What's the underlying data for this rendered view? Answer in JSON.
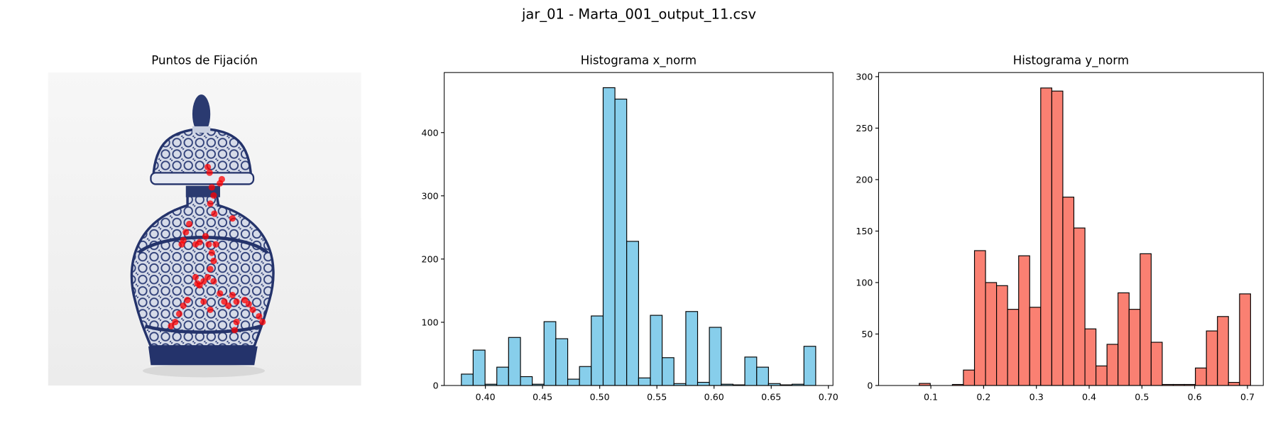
{
  "title": "jar_01 - Marta_001_output_11.csv",
  "chart_data": [
    {
      "type": "scatter",
      "title": "Puntos de Fijación",
      "color": "#ff0000",
      "x": [
        0.51,
        0.516,
        0.523,
        0.529,
        0.518,
        0.555,
        0.549,
        0.531,
        0.589,
        0.451,
        0.44,
        0.432,
        0.427,
        0.471,
        0.484,
        0.503,
        0.513,
        0.523,
        0.529,
        0.518,
        0.51,
        0.497,
        0.484,
        0.529,
        0.536,
        0.471,
        0.549,
        0.563,
        0.576,
        0.589,
        0.602,
        0.628,
        0.641,
        0.654,
        0.674,
        0.685,
        0.602,
        0.596,
        0.419,
        0.406,
        0.393,
        0.432,
        0.445,
        0.497,
        0.518,
        0.477
      ],
      "y": [
        0.302,
        0.32,
        0.367,
        0.393,
        0.419,
        0.341,
        0.354,
        0.451,
        0.466,
        0.484,
        0.51,
        0.536,
        0.549,
        0.549,
        0.542,
        0.523,
        0.549,
        0.576,
        0.602,
        0.628,
        0.654,
        0.667,
        0.68,
        0.667,
        0.549,
        0.654,
        0.706,
        0.732,
        0.745,
        0.711,
        0.732,
        0.727,
        0.74,
        0.758,
        0.779,
        0.797,
        0.797,
        0.823,
        0.771,
        0.797,
        0.81,
        0.745,
        0.727,
        0.732,
        0.758,
        0.674
      ]
    },
    {
      "type": "histogram",
      "title": "Histograma x_norm",
      "color": "#87ceeb",
      "edgecolor": "#000000",
      "bins": [
        0.379,
        0.3893,
        0.3997,
        0.41,
        0.4203,
        0.4307,
        0.441,
        0.4513,
        0.4616,
        0.472,
        0.4823,
        0.4926,
        0.503,
        0.5133,
        0.5236,
        0.534,
        0.5443,
        0.5546,
        0.5649,
        0.5753,
        0.5856,
        0.5959,
        0.6063,
        0.6166,
        0.6269,
        0.6373,
        0.6476,
        0.6579,
        0.6682,
        0.6786,
        0.6889
      ],
      "values": [
        18,
        56,
        2,
        29,
        76,
        14,
        2,
        101,
        74,
        10,
        30,
        110,
        471,
        453,
        228,
        12,
        111,
        44,
        3,
        117,
        5,
        92,
        2,
        1,
        45,
        29,
        3,
        1,
        2,
        62
      ],
      "xlim": [
        0.364,
        0.704
      ],
      "ylim": [
        0,
        495
      ],
      "xticks": [
        {
          "value": 0.4,
          "label": "0.40"
        },
        {
          "value": 0.45,
          "label": "0.45"
        },
        {
          "value": 0.5,
          "label": "0.50"
        },
        {
          "value": 0.55,
          "label": "0.55"
        },
        {
          "value": 0.6,
          "label": "0.60"
        },
        {
          "value": 0.65,
          "label": "0.65"
        },
        {
          "value": 0.7,
          "label": "0.70"
        }
      ],
      "yticks": [
        0,
        100,
        200,
        300,
        400
      ]
    },
    {
      "type": "histogram",
      "title": "Histograma y_norm",
      "color": "#fa8072",
      "edgecolor": "#000000",
      "bins": [
        0.078,
        0.0989,
        0.1199,
        0.1408,
        0.1617,
        0.1827,
        0.2036,
        0.2245,
        0.2454,
        0.2664,
        0.2873,
        0.3082,
        0.3292,
        0.3501,
        0.371,
        0.392,
        0.4129,
        0.4338,
        0.4547,
        0.4757,
        0.4966,
        0.5175,
        0.5385,
        0.5594,
        0.5803,
        0.6013,
        0.6222,
        0.6431,
        0.664,
        0.685,
        0.7059
      ],
      "values": [
        2,
        0,
        0,
        1,
        15,
        131,
        100,
        97,
        74,
        126,
        76,
        289,
        286,
        183,
        153,
        55,
        19,
        40,
        90,
        74,
        128,
        42,
        1,
        1,
        1,
        17,
        53,
        67,
        3,
        89
      ],
      "xlim": [
        0.001,
        0.73
      ],
      "ylim": [
        0,
        304
      ],
      "xticks": [
        0.1,
        0.2,
        0.3,
        0.4,
        0.5,
        0.6,
        0.7
      ],
      "yticks": [
        0,
        50,
        100,
        150,
        200,
        250,
        300
      ]
    }
  ]
}
